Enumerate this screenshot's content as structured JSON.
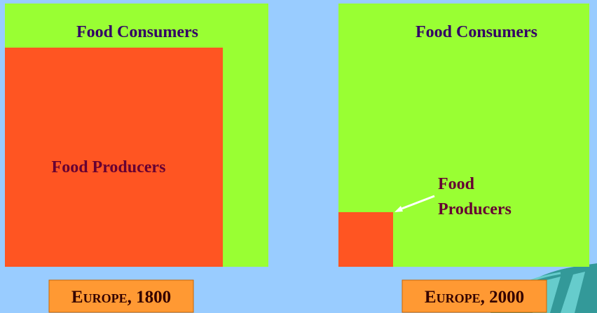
{
  "panels": [
    {
      "consumers_label": "Food Consumers",
      "producers_label": [
        "Food Producers"
      ],
      "caption": "Europe, 1800"
    },
    {
      "consumers_label": "Food Consumers",
      "producers_label": [
        "Food",
        "Producers"
      ],
      "caption": "Europe, 2000"
    }
  ]
}
